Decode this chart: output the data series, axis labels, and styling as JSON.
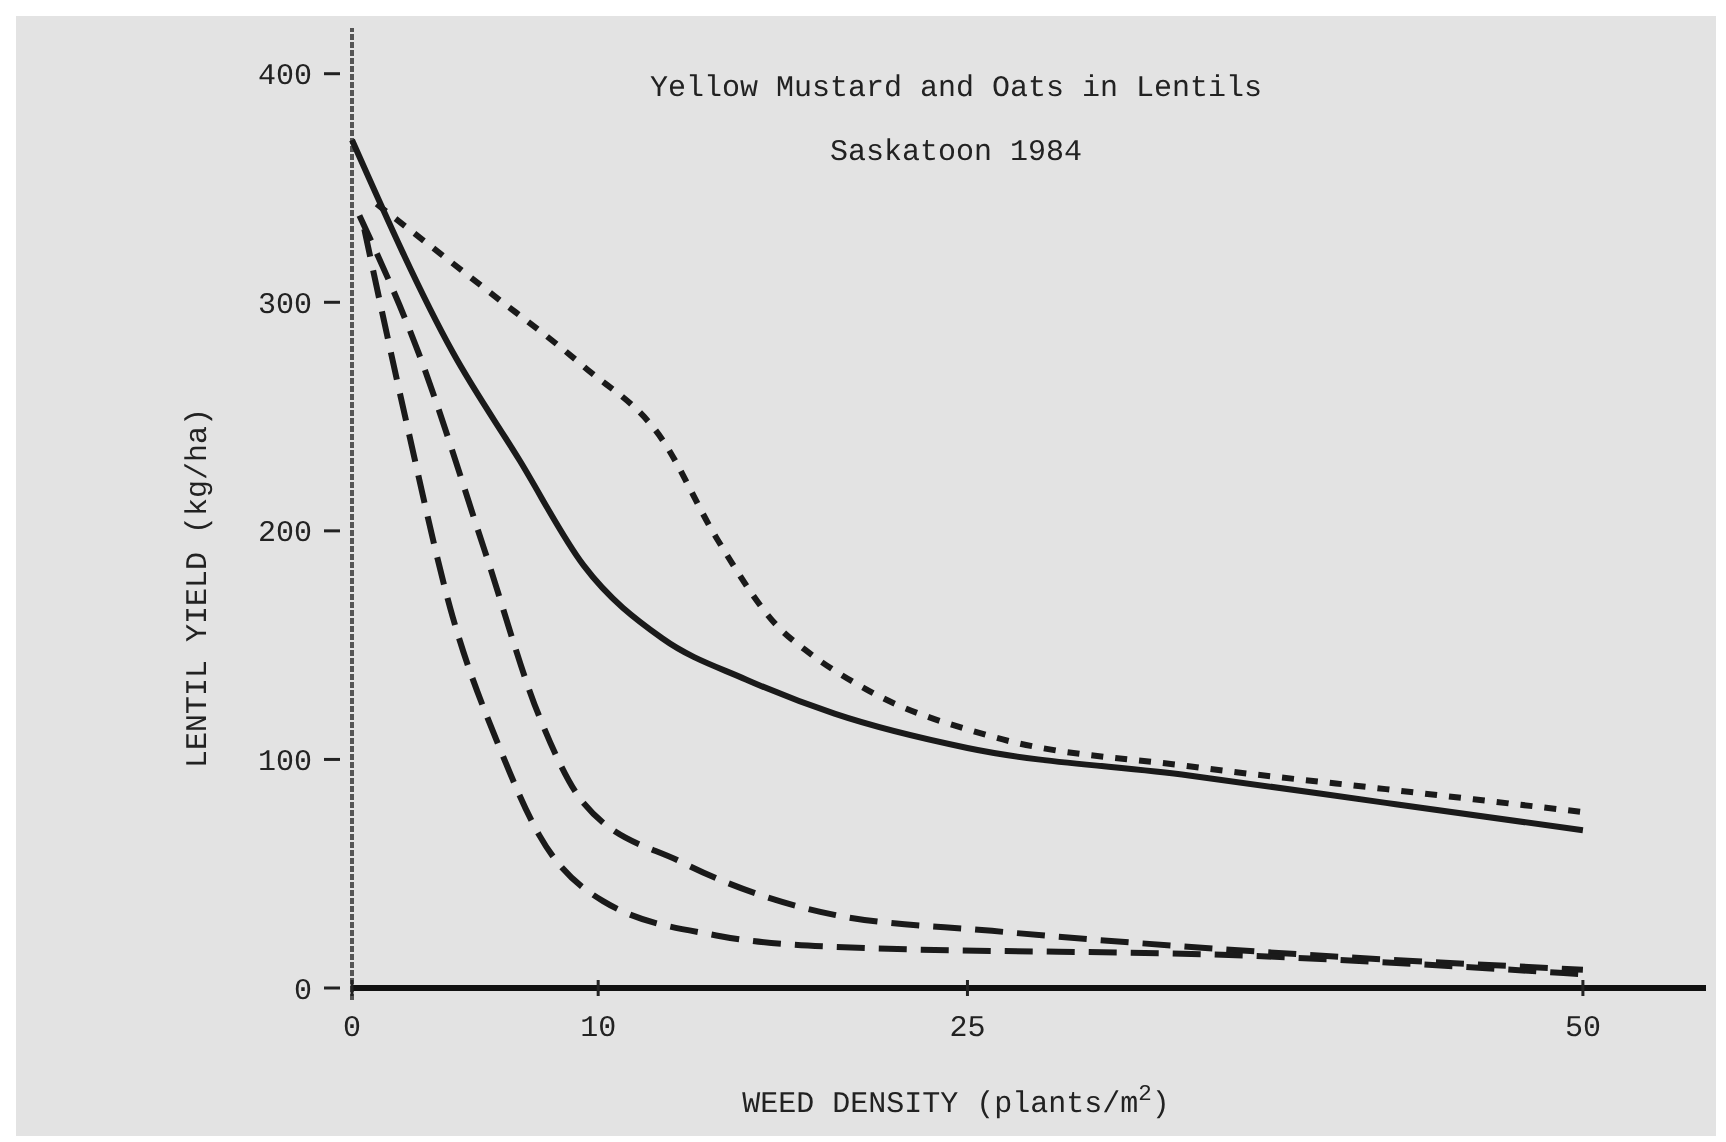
{
  "chart_data": {
    "type": "line",
    "title": "Yellow Mustard and Oats in Lentils",
    "subtitle": "Saskatoon 1984",
    "xlabel": "WEED DENSITY (plants/m$^{2}$)",
    "ylabel": "LENTIL YIELD (kg/ha)",
    "xlim": [
      0,
      55
    ],
    "xticks": [
      0,
      10,
      25,
      50
    ],
    "ylim": [
      0,
      420
    ],
    "yticks": [
      0,
      100,
      200,
      300,
      400
    ],
    "marker": "none",
    "series": [
      {
        "color": "#1a1a1a",
        "line_style": "solid",
        "x": [
          0,
          4.1,
          6.8,
          9.4,
          12.6,
          16,
          19.6,
          25,
          34,
          42,
          50
        ],
        "values": [
          371,
          278,
          231,
          185,
          153,
          135,
          120,
          105,
          93,
          81,
          69
        ]
      },
      {
        "color": "#1a1a1a",
        "line_style": "dotted",
        "x": [
          1,
          5.4,
          9.4,
          12.6,
          14.8,
          17.4,
          18.4,
          21,
          26,
          34,
          42,
          50
        ],
        "values": [
          343,
          306,
          272,
          240,
          197,
          157,
          148,
          130,
          110,
          97,
          87,
          77
        ]
      },
      {
        "color": "#1a1a1a",
        "line_style": "dashed",
        "x": [
          0.3,
          2.7,
          5.4,
          7.6,
          9.4,
          13.4,
          19.6,
          26,
          36.7,
          50
        ],
        "values": [
          338,
          278,
          191,
          119,
          81,
          55,
          32,
          25,
          16,
          8
        ]
      },
      {
        "color": "#1a1a1a",
        "line_style": "dashed",
        "x": [
          0.5,
          2.2,
          4.1,
          6,
          7.6,
          10.2,
          14.8,
          19.6,
          36.7,
          50
        ],
        "values": [
          332,
          248,
          162,
          105,
          67,
          38,
          23,
          18,
          14,
          6
        ]
      }
    ]
  }
}
